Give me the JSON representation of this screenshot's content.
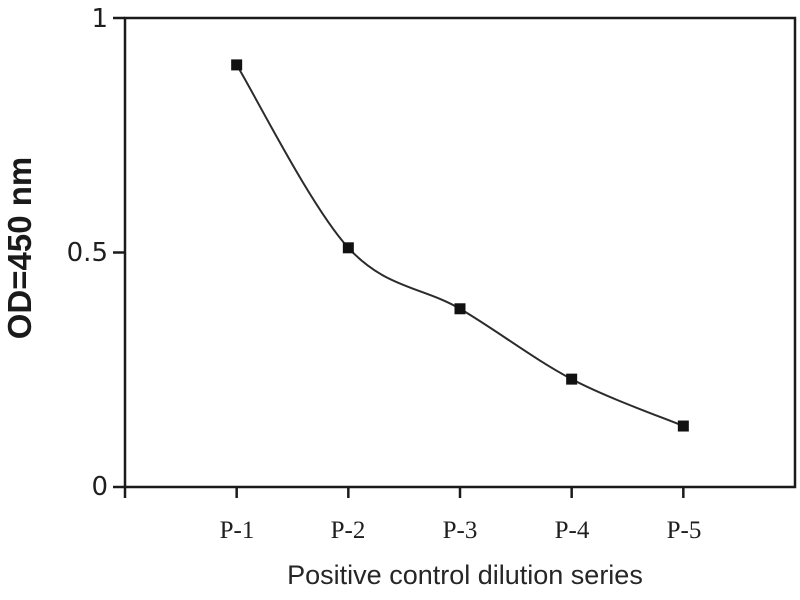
{
  "chart_data": {
    "type": "line",
    "categories": [
      "P-1",
      "P-2",
      "P-3",
      "P-4",
      "P-5"
    ],
    "values": [
      0.9,
      0.51,
      0.38,
      0.23,
      0.13
    ],
    "xlabel": "Positive control dilution series",
    "ylabel": "OD=450 nm",
    "ylim": [
      0,
      1
    ],
    "ytick_labels": [
      "1",
      "0.5",
      "0"
    ],
    "ytick_values": [
      1,
      0.5,
      0
    ],
    "marker": "square",
    "line_smooth": true,
    "grid": false,
    "legend_position": "none",
    "colors": {
      "line": "#2b2b2b",
      "marker": "#111111",
      "axis": "#1a1a1a",
      "text": "#1f1f1f",
      "background": "#ffffff"
    }
  }
}
